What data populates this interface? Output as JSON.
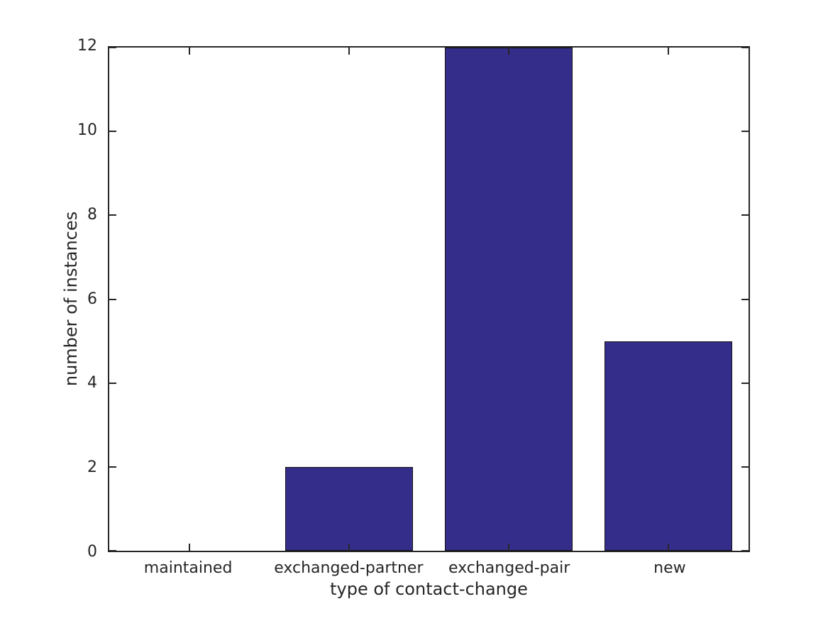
{
  "figure": {
    "background": "#ffffff"
  },
  "chart_data": {
    "type": "bar",
    "title": "",
    "xlabel": "type of contact-change",
    "ylabel": "number of instances",
    "categories": [
      "maintained",
      "exchanged-partner",
      "exchanged-pair",
      "new"
    ],
    "values": [
      0,
      2,
      12,
      5
    ],
    "ylim": [
      0,
      12
    ],
    "yticks": [
      0,
      2,
      4,
      6,
      8,
      10,
      12
    ],
    "bar_width_fraction": 0.8,
    "grid": false,
    "legend": false,
    "box": true,
    "tick_direction": "in",
    "colors": {
      "bar_fill": "#352d8a",
      "bar_edge": "#111111",
      "axis": "#262626",
      "text": "#262626",
      "background": "#ffffff"
    }
  }
}
